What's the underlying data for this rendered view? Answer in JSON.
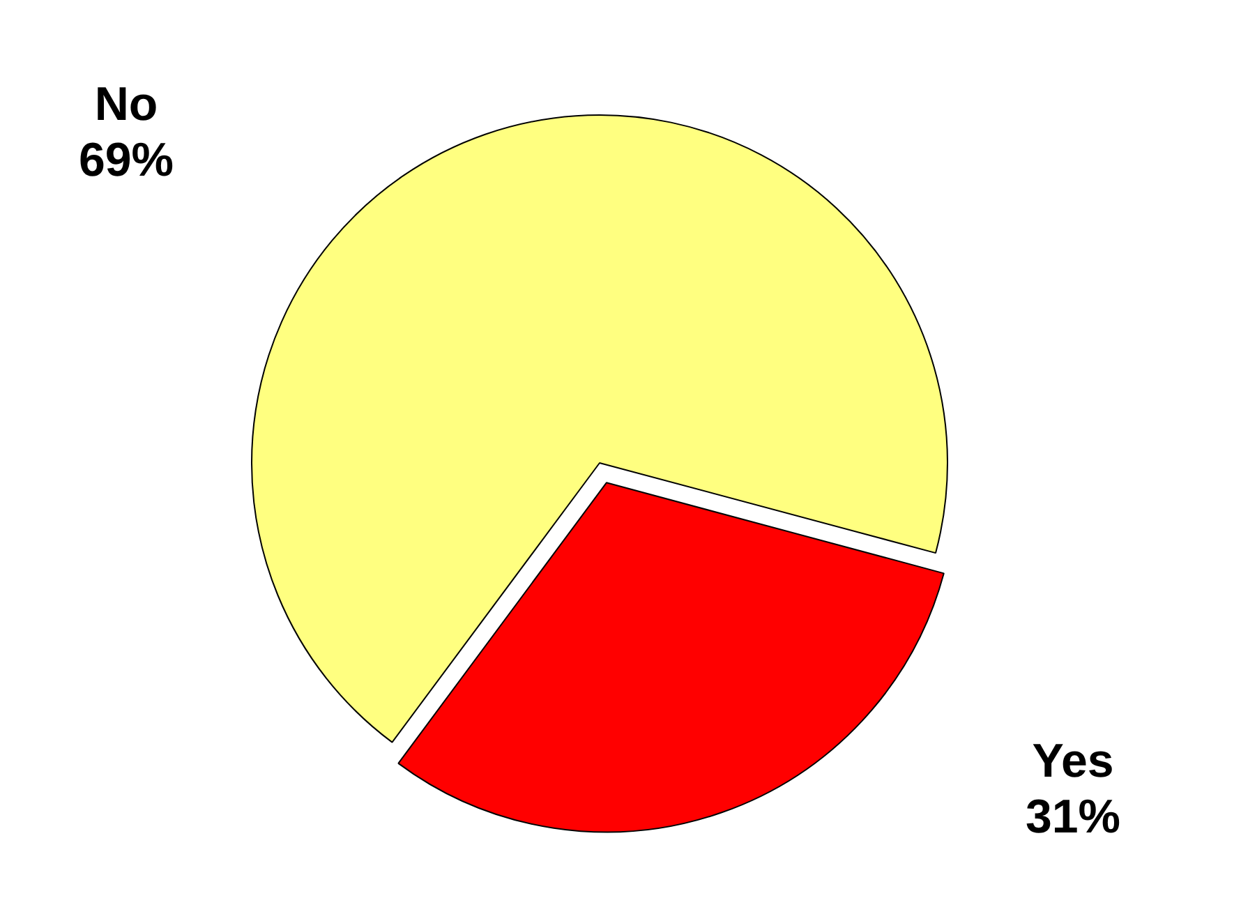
{
  "chart_data": {
    "type": "pie",
    "categories": [
      "No",
      "Yes"
    ],
    "values": [
      69,
      31
    ],
    "colors": [
      "#ffff80",
      "#ff0000"
    ],
    "value_labels": [
      "69%",
      "31%"
    ]
  }
}
